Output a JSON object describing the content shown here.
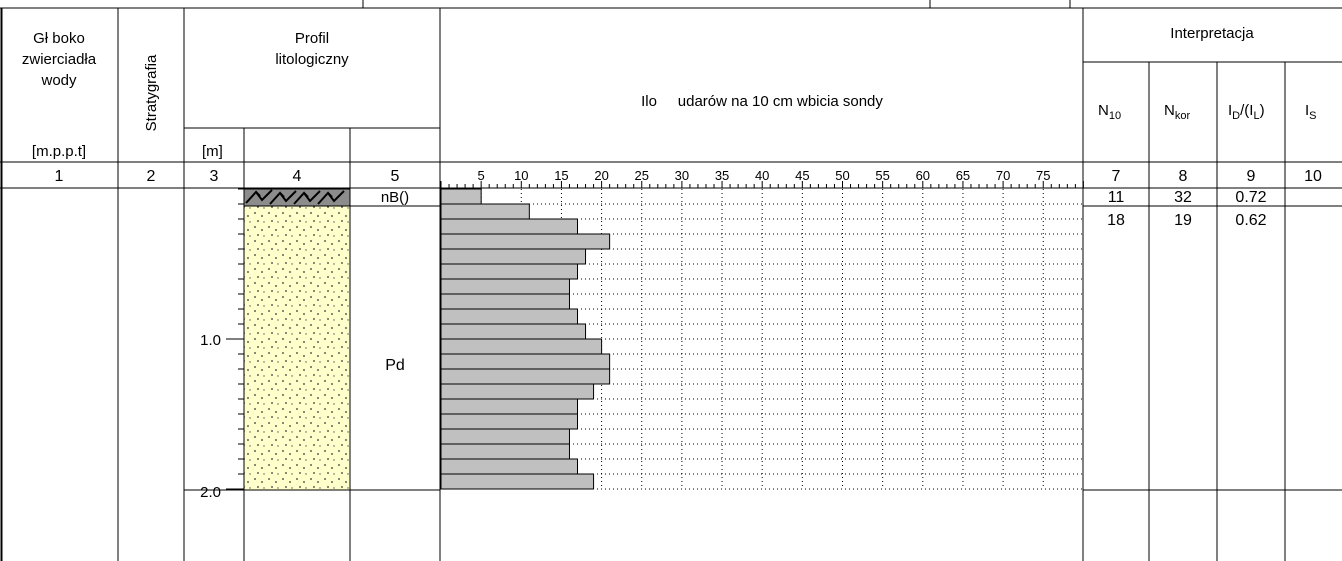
{
  "header": {
    "water_level": [
      "Gł boko",
      "zwierciadła",
      "wody"
    ],
    "water_level_unit": "[m.p.p.t]",
    "stratigraphy": "Stratygrafia",
    "profile": [
      "Profil",
      "litologiczny"
    ],
    "depth_unit": "[m]",
    "sounding_title": "Ilo     udarów na 10 cm wbicia sondy",
    "interpretation": "Interpretacja",
    "n10": {
      "main": "N",
      "sub": "10"
    },
    "nkor": {
      "main": "N",
      "sub": "kor"
    },
    "id_il": {
      "p1": "I",
      "s1": "D",
      "p2": "/(I",
      "s2": "L",
      "p3": ")"
    },
    "is": {
      "main": "I",
      "sub": "S"
    }
  },
  "column_numbers": [
    "1",
    "2",
    "3",
    "4",
    "5",
    "7",
    "8",
    "9",
    "10"
  ],
  "depth_labels": [
    "1.0",
    "2.0"
  ],
  "layers": [
    {
      "code": "nB()",
      "pattern": "fill-hatch",
      "color": "#8c8c8c"
    },
    {
      "code": "Pd",
      "pattern": "sand-dots",
      "color": "#ffffcc"
    }
  ],
  "interpretation_rows": [
    {
      "n10": "11",
      "nkor": "32",
      "id": "0.72",
      "is": ""
    },
    {
      "n10": "18",
      "nkor": "19",
      "id": "0.62",
      "is": ""
    }
  ],
  "chart_data": {
    "type": "bar",
    "orientation": "horizontal",
    "xlabel": "Ilo     udarów na 10 cm wbicia sondy",
    "x_ticks": [
      5,
      10,
      15,
      20,
      25,
      30,
      35,
      40,
      45,
      50,
      55,
      60,
      65,
      70,
      75
    ],
    "xlim": [
      0,
      80
    ],
    "ylim": [
      0,
      2.0
    ],
    "grid": true,
    "bar_color": "#c0c0c0",
    "depth_interval": 0.1,
    "values": [
      5,
      11,
      17,
      21,
      18,
      17,
      16,
      16,
      17,
      18,
      20,
      21,
      21,
      19,
      17,
      17,
      16,
      16,
      17,
      19
    ]
  }
}
